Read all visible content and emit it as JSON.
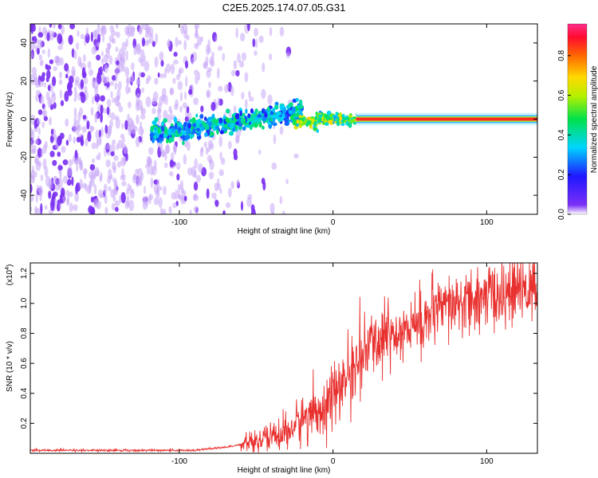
{
  "title": "C2E5.2025.174.07.05.G31",
  "colorbar": {
    "label": "Normalized spectral amplitude",
    "ticks": [
      "0.0",
      "0.2",
      "0.4",
      "0.6",
      "0.8"
    ],
    "range": [
      0,
      0.96
    ],
    "colormap": "rainbow (purple-blue-cyan-green-yellow-orange-red-pink)"
  },
  "chart_data": [
    {
      "type": "heatmap",
      "xlabel": "Height of straight line (km)",
      "ylabel": "Frequency (Hz)",
      "xlim": [
        -197,
        133
      ],
      "ylim": [
        -50,
        50
      ],
      "xticks": [
        -100,
        0,
        100
      ],
      "yticks": [
        -40,
        -20,
        0,
        20,
        40
      ],
      "grid": false,
      "description_regions": [
        {
          "x_range": [
            -197,
            -120
          ],
          "freq_range": [
            -50,
            50
          ],
          "amplitude": "low, noisy (purple)"
        },
        {
          "x_range": [
            -120,
            -25
          ],
          "freq_center_start": -8,
          "freq_center_end": 5,
          "amplitude": "medium (blue-green)"
        },
        {
          "x_range": [
            -25,
            15
          ],
          "freq_center": 0,
          "amplitude": "medium-high (green-yellow)"
        },
        {
          "x_range": [
            15,
            133
          ],
          "freq_center": 0,
          "amplitude": "high (red) steady tone"
        }
      ]
    },
    {
      "type": "line",
      "xlabel": "Height of straight line (km)",
      "ylabel": "SNR (10 * v/v)",
      "yscale_label": "(x10",
      "yscale_exp": "4",
      "xlim": [
        -197,
        133
      ],
      "ylim": [
        0,
        1.27
      ],
      "xticks": [
        -100,
        0,
        100
      ],
      "yticks": [
        0.2,
        0.4,
        0.6,
        0.8,
        1.0,
        1.2
      ],
      "ytick_labels": [
        "0.2",
        "0.4",
        "0.6",
        "0.8",
        "1.0",
        "1.2"
      ],
      "series_color": "#e8302e",
      "series": [
        {
          "x": [
            -197,
            -180,
            -160,
            -140,
            -120,
            -100,
            -90,
            -80,
            -70,
            -60,
            -50,
            -40,
            -30,
            -25,
            -20,
            -15,
            -10,
            -5,
            0,
            5,
            10,
            15,
            20,
            25,
            30,
            40,
            50,
            55,
            60,
            70,
            80,
            90,
            100,
            110,
            120,
            130,
            133
          ],
          "values": [
            0.02,
            0.02,
            0.02,
            0.02,
            0.02,
            0.02,
            0.02,
            0.03,
            0.04,
            0.06,
            0.08,
            0.11,
            0.14,
            0.18,
            0.23,
            0.26,
            0.3,
            0.32,
            0.38,
            0.45,
            0.52,
            0.58,
            0.66,
            0.72,
            0.77,
            0.81,
            0.84,
            0.86,
            0.9,
            0.95,
            0.99,
            1.01,
            1.04,
            1.06,
            1.08,
            1.1,
            1.12
          ]
        }
      ]
    }
  ]
}
